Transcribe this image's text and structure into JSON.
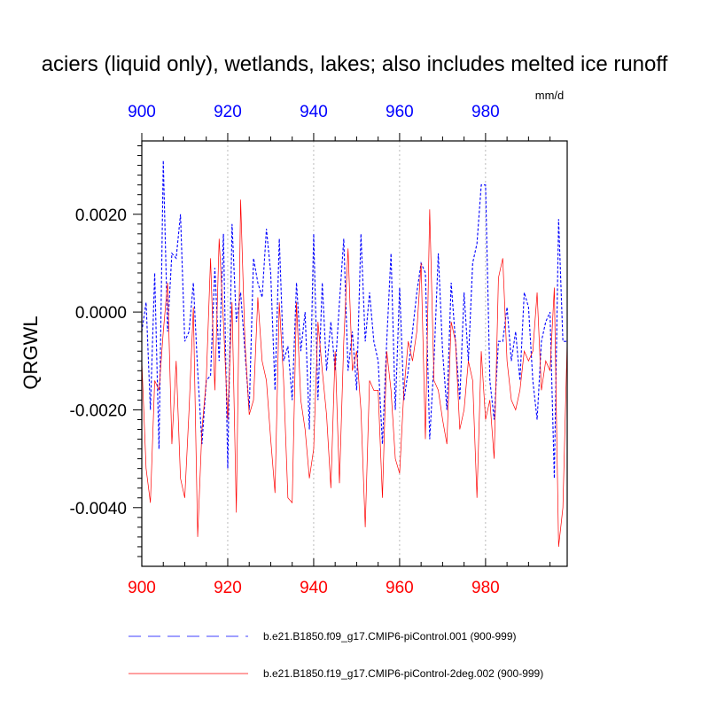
{
  "chart_data": {
    "type": "line",
    "title": "aciers (liquid only), wetlands, lakes; also includes melted ice runoff",
    "units": "mm/d",
    "ylabel": "QRGWL",
    "xlim": [
      900,
      999
    ],
    "ylim": [
      -0.0052,
      0.0035
    ],
    "x_ticks": [
      "900",
      "920",
      "940",
      "960",
      "980"
    ],
    "y_ticks": [
      {
        "value": 0.002,
        "label": "0.0020"
      },
      {
        "value": 0.0,
        "label": "0.0000"
      },
      {
        "value": -0.002,
        "label": "-0.0020"
      },
      {
        "value": -0.004,
        "label": "-0.0040"
      }
    ],
    "grid": "vertical dotted at major x ticks",
    "series": [
      {
        "name": "b.e21.B1850.f09_g17.CMIP6-piControl.001 (900-999)",
        "color": "#0000ff",
        "dash": "dashed",
        "x_start": 900,
        "values": [
          -0.0004,
          0.0002,
          -0.002,
          0.0008,
          -0.0028,
          0.0031,
          -0.0004,
          0.0012,
          0.0011,
          0.002,
          -0.0006,
          -0.0004,
          0.0006,
          -0.0012,
          -0.0027,
          -0.0014,
          -0.0013,
          0.0009,
          -0.001,
          0.0016,
          -0.0032,
          0.0018,
          -0.0002,
          0.0004,
          -0.0008,
          -0.002,
          0.0011,
          0.0006,
          0.0003,
          0.0017,
          0.0008,
          -0.0016,
          0.0015,
          -0.001,
          -0.0007,
          -0.0018,
          0.0006,
          -0.0008,
          0.0,
          -0.0024,
          0.0016,
          -0.0018,
          0.0006,
          -0.0012,
          -0.0002,
          -0.0012,
          0.0002,
          0.0015,
          -0.0012,
          -0.0004,
          -0.0016,
          0.0016,
          -0.0006,
          0.0004,
          -0.0006,
          -0.001,
          -0.0027,
          -0.0006,
          0.0012,
          -0.002,
          0.0005,
          -0.0018,
          -0.0012,
          -0.0004,
          0.0004,
          0.001,
          0.0008,
          -0.0026,
          -0.001,
          0.0012,
          -0.0008,
          -0.002,
          0.0006,
          -0.0006,
          -0.0018,
          0.0004,
          -0.001,
          0.001,
          0.0014,
          0.0026,
          0.0026,
          -0.0014,
          -0.0022,
          -0.0006,
          -0.0006,
          0.0001,
          -0.001,
          -0.0004,
          -0.0014,
          0.0004,
          0.0001,
          -0.0014,
          -0.0022,
          -0.0006,
          -0.0002,
          0.0,
          -0.0034,
          0.0019,
          -0.0006,
          -0.0006
        ]
      },
      {
        "name": "b.e21.B1850.f19_g17.CMIP6-piControl-2deg.002 (900-999)",
        "color": "#ff0000",
        "dash": "solid",
        "x_start": 900,
        "values": [
          -0.001,
          -0.0032,
          -0.0039,
          -0.0014,
          -0.0016,
          -0.0004,
          0.0006,
          -0.0027,
          -0.001,
          -0.0034,
          -0.0038,
          -0.002,
          0.0001,
          -0.0046,
          -0.0024,
          -0.0014,
          0.0011,
          -0.0016,
          0.0015,
          -0.0002,
          -0.0022,
          0.0002,
          -0.0041,
          0.0023,
          -0.0006,
          -0.0021,
          -0.0018,
          0.0003,
          -0.001,
          -0.0014,
          -0.0026,
          -0.0037,
          0.0002,
          -0.0014,
          -0.0038,
          -0.0039,
          0.0002,
          -0.0018,
          -0.0024,
          -0.0034,
          -0.0028,
          -0.0002,
          -0.0012,
          -0.0021,
          -0.0036,
          -0.0008,
          -0.0035,
          -0.0006,
          0.0013,
          -0.0012,
          -0.0008,
          -0.002,
          -0.0044,
          -0.0014,
          -0.0016,
          -0.0016,
          -0.0038,
          -0.0008,
          -0.0016,
          -0.003,
          -0.0033,
          -0.0016,
          -0.0006,
          -0.001,
          -0.0004,
          0.001,
          -0.0026,
          0.0021,
          -0.0014,
          -0.0016,
          -0.0022,
          -0.0027,
          -0.0002,
          -0.0006,
          -0.0024,
          -0.002,
          -0.001,
          -0.0014,
          -0.0038,
          -0.0008,
          -0.0022,
          -0.0018,
          -0.003,
          0.0007,
          0.0011,
          -0.001,
          -0.0018,
          -0.002,
          -0.0016,
          -0.0008,
          -0.001,
          -0.0008,
          0.0004,
          -0.0016,
          -0.001,
          -0.0012,
          0.0005,
          -0.0048,
          -0.004,
          -0.0006
        ]
      }
    ],
    "legend": "bottom"
  }
}
